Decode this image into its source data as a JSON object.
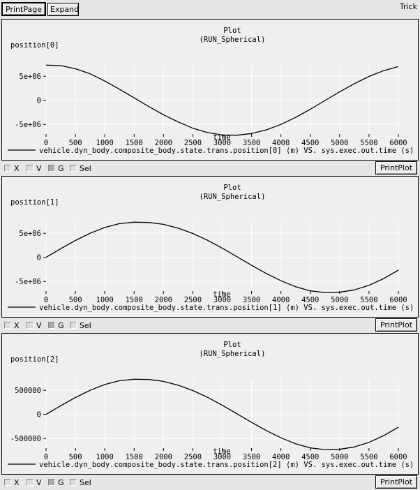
{
  "app": {
    "title": "Trick"
  },
  "toolbar": {
    "printpage_label": "PrintPage",
    "expand_label": "Expand"
  },
  "controls": {
    "x": "X",
    "v": "V",
    "g": "G",
    "sel": "Sel",
    "printplot": "PrintPlot",
    "g_checked": true
  },
  "plots": [
    {
      "title": "Plot",
      "subtitle": "(RUN_Spherical)",
      "ylabel": "position[0]",
      "legend": "vehicle.dyn_body.composite_body.state.trans.position[0] (m) VS. sys.exec.out.time (s) [RUN_"
    },
    {
      "title": "Plot",
      "subtitle": "(RUN_Spherical)",
      "ylabel": "position[1]",
      "legend": "vehicle.dyn_body.composite_body.state.trans.position[1] (m) VS. sys.exec.out.time (s) [RUN_"
    },
    {
      "title": "Plot",
      "subtitle": "(RUN_Spherical)",
      "ylabel": "position[2]",
      "legend": "vehicle.dyn_body.composite_body.state.trans.position[2] (m) VS. sys.exec.out.time (s) [RUN_"
    }
  ],
  "chart_data": [
    {
      "type": "line",
      "title": "Plot",
      "subtitle": "(RUN_Spherical)",
      "xlabel": "time",
      "ylabel": "position[0]",
      "xlim": [
        0,
        6000
      ],
      "ylim": [
        -7000000,
        7200000
      ],
      "xticks": [
        0,
        500,
        1000,
        1500,
        2000,
        2500,
        3000,
        3500,
        4000,
        4500,
        5000,
        5500,
        6000
      ],
      "yticks": [
        5000000,
        0,
        -5000000
      ],
      "ytick_labels": [
        "5e+06",
        "0",
        "-5e+06"
      ],
      "grid": true,
      "legend_position": "bottom",
      "series": [
        {
          "name": "vehicle.dyn_body.composite_body.state.trans.position[0] (m) VS. sys.exec.out.time (s) [RUN_",
          "x": [
            0,
            250,
            500,
            750,
            1000,
            1250,
            1500,
            1750,
            2000,
            2250,
            2500,
            2750,
            3000,
            3250,
            3500,
            3750,
            4000,
            4250,
            4500,
            4750,
            5000,
            5250,
            5500,
            5750,
            6000
          ],
          "y": [
            7300000,
            7200000,
            6550000,
            5500000,
            4000000,
            2300000,
            500000,
            -1300000,
            -3000000,
            -4500000,
            -5800000,
            -6700000,
            -7200000,
            -7250000,
            -6900000,
            -6150000,
            -5000000,
            -3550000,
            -1850000,
            -50000,
            1750000,
            3450000,
            4950000,
            6150000,
            7000000
          ]
        }
      ]
    },
    {
      "type": "line",
      "title": "Plot",
      "subtitle": "(RUN_Spherical)",
      "xlabel": "time",
      "ylabel": "position[1]",
      "xlim": [
        0,
        6000
      ],
      "ylim": [
        -7000000,
        7200000
      ],
      "xticks": [
        0,
        500,
        1000,
        1500,
        2000,
        2500,
        3000,
        3500,
        4000,
        4500,
        5000,
        5500,
        6000
      ],
      "yticks": [
        5000000,
        0,
        -5000000
      ],
      "ytick_labels": [
        "5e+06",
        "0",
        "-5e+06"
      ],
      "grid": true,
      "legend_position": "bottom",
      "series": [
        {
          "name": "vehicle.dyn_body.composite_body.state.trans.position[1] (m) VS. sys.exec.out.time (s) [RUN_",
          "x": [
            0,
            250,
            500,
            750,
            1000,
            1250,
            1500,
            1750,
            2000,
            2250,
            2500,
            2750,
            3000,
            3250,
            3500,
            3750,
            4000,
            4250,
            4500,
            4750,
            5000,
            5250,
            5500,
            5750,
            6000
          ],
          "y": [
            0,
            1800000,
            3500000,
            5000000,
            6200000,
            7000000,
            7300000,
            7250000,
            6850000,
            6050000,
            4950000,
            3550000,
            1900000,
            150000,
            -1650000,
            -3350000,
            -4850000,
            -6100000,
            -6950000,
            -7300000,
            -7250000,
            -6750000,
            -5800000,
            -4400000,
            -2650000
          ]
        }
      ]
    },
    {
      "type": "line",
      "title": "Plot",
      "subtitle": "(RUN_Spherical)",
      "xlabel": "time",
      "ylabel": "position[2]",
      "xlim": [
        0,
        6000
      ],
      "ylim": [
        -700000,
        720000
      ],
      "xticks": [
        0,
        500,
        1000,
        1500,
        2000,
        2500,
        3000,
        3500,
        4000,
        4500,
        5000,
        5500,
        6000
      ],
      "yticks": [
        500000,
        0,
        -500000
      ],
      "ytick_labels": [
        "500000",
        "0",
        "-500000"
      ],
      "grid": true,
      "legend_position": "bottom",
      "series": [
        {
          "name": "vehicle.dyn_body.composite_body.state.trans.position[2] (m) VS. sys.exec.out.time (s) [RUN_",
          "x": [
            0,
            250,
            500,
            750,
            1000,
            1250,
            1500,
            1750,
            2000,
            2250,
            2500,
            2750,
            3000,
            3250,
            3500,
            3750,
            4000,
            4250,
            4500,
            4750,
            5000,
            5250,
            5500,
            5750,
            6000
          ],
          "y": [
            0,
            180000,
            350000,
            500000,
            620000,
            700000,
            730000,
            725000,
            685000,
            605000,
            495000,
            355000,
            190000,
            15000,
            -165000,
            -335000,
            -485000,
            -610000,
            -695000,
            -730000,
            -725000,
            -675000,
            -580000,
            -440000,
            -265000
          ]
        }
      ]
    }
  ]
}
